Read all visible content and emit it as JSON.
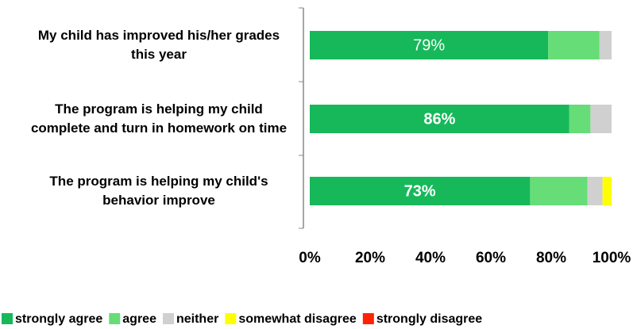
{
  "chart_data": {
    "type": "stacked_barh",
    "categories": [
      "My child has improved his/her grades this year",
      "The program is helping my child complete and turn in homework on time",
      "The program is helping my child's behavior improve"
    ],
    "series": [
      {
        "name": "strongly agree",
        "color": "#16b85a",
        "values": [
          79,
          86,
          73
        ],
        "value_labels": [
          "79%",
          "86%",
          "73%"
        ]
      },
      {
        "name": "agree",
        "color": "#66dd77",
        "values": [
          17,
          7,
          19
        ]
      },
      {
        "name": "neither",
        "color": "#d0d0d0",
        "values": [
          4,
          7,
          5
        ]
      },
      {
        "name": "somewhat disagree",
        "color": "#ffff00",
        "values": [
          0,
          0,
          3
        ]
      },
      {
        "name": "strongly disagree",
        "color": "#ff2200",
        "values": [
          0,
          0,
          0
        ]
      }
    ],
    "xlim": [
      0,
      100
    ],
    "xticks": [
      {
        "value": 0,
        "label": "0%"
      },
      {
        "value": 20,
        "label": "20%"
      },
      {
        "value": 40,
        "label": "40%"
      },
      {
        "value": 60,
        "label": "60%"
      },
      {
        "value": 80,
        "label": "80%"
      },
      {
        "value": 100,
        "label": "100%"
      }
    ],
    "legend": "bottom"
  }
}
